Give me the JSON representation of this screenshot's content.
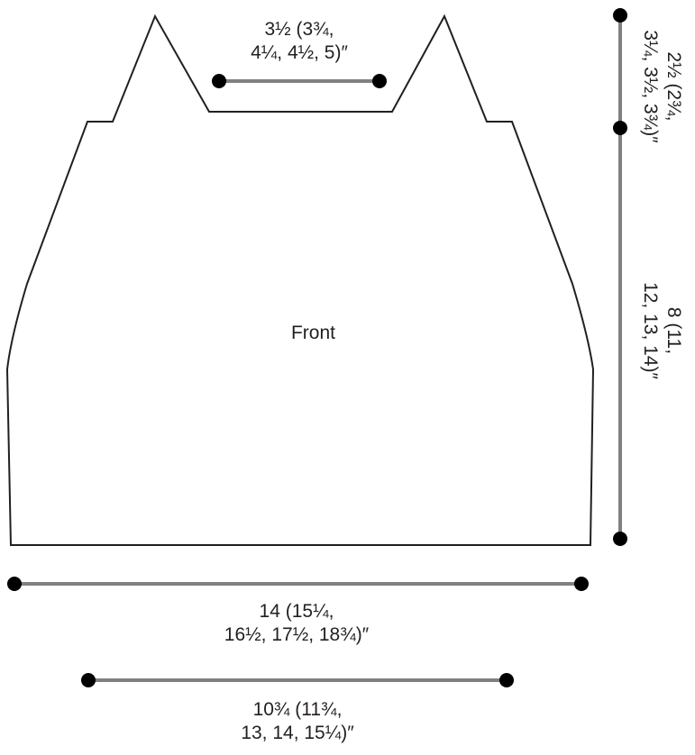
{
  "diagram": {
    "piece_label": "Front",
    "neck_width": {
      "line1": "3½ (3¾,",
      "line2": "4¼, 4½, 5)″"
    },
    "shoulder_height": {
      "line1": "2½ (2¾,",
      "line2": "3¼, 3½, 3¾)″"
    },
    "body_height": {
      "line1": "8 (11,",
      "line2": "12, 13, 14)″"
    },
    "bottom_width": {
      "line1": "14 (15¼,",
      "line2": "16½, 17½, 18¾)″"
    },
    "lower_width": {
      "line1": "10¾ (11¾,",
      "line2": "13, 14, 15¼)″"
    },
    "colors": {
      "outline": "#231f20",
      "measure_line": "#808080",
      "dot": "#000000"
    }
  }
}
